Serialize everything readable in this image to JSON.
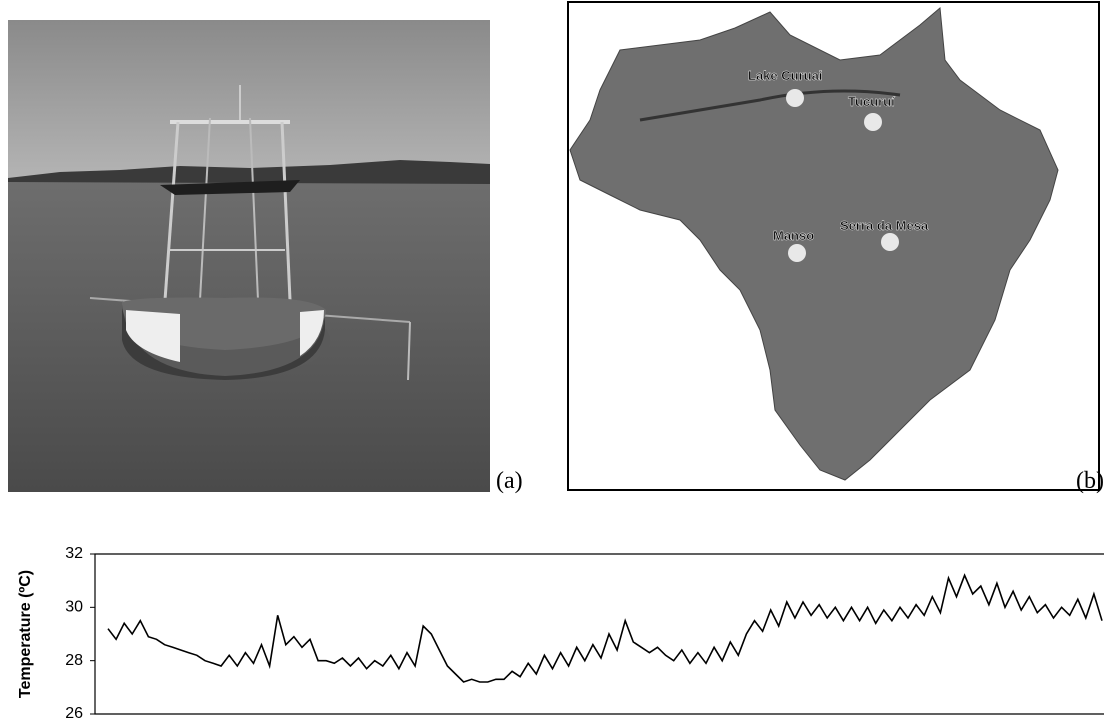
{
  "figure": {
    "panel_a": {
      "label": "(a)"
    },
    "panel_b": {
      "label": "(b)",
      "sites": [
        "Lake Curuai",
        "Tucuruí",
        "Manso",
        "Serra da Mesa"
      ]
    }
  },
  "chart_data": {
    "type": "line",
    "ylabel": "Temperature (ºC)",
    "color": "#000000",
    "ylim": [
      26,
      32
    ],
    "yticks": [
      26,
      28,
      30,
      32
    ],
    "values": [
      29.2,
      28.8,
      29.4,
      29.0,
      29.5,
      28.9,
      28.8,
      28.6,
      28.5,
      28.4,
      28.3,
      28.2,
      28.0,
      27.9,
      27.8,
      28.2,
      27.8,
      28.3,
      27.9,
      28.6,
      27.8,
      29.7,
      28.6,
      28.9,
      28.5,
      28.8,
      28.0,
      28.0,
      27.9,
      28.1,
      27.8,
      28.1,
      27.7,
      28.0,
      27.8,
      28.2,
      27.7,
      28.3,
      27.8,
      29.3,
      29.0,
      28.4,
      27.8,
      27.5,
      27.2,
      27.3,
      27.2,
      27.2,
      27.3,
      27.3,
      27.6,
      27.4,
      27.9,
      27.5,
      28.2,
      27.7,
      28.3,
      27.8,
      28.5,
      28.0,
      28.6,
      28.1,
      29.0,
      28.4,
      29.5,
      28.7,
      28.5,
      28.3,
      28.5,
      28.2,
      28.0,
      28.4,
      27.9,
      28.3,
      27.9,
      28.5,
      28.0,
      28.7,
      28.2,
      29.0,
      29.5,
      29.1,
      29.9,
      29.3,
      30.2,
      29.6,
      30.2,
      29.7,
      30.1,
      29.6,
      30.0,
      29.5,
      30.0,
      29.5,
      30.0,
      29.4,
      29.9,
      29.5,
      30.0,
      29.6,
      30.1,
      29.7,
      30.4,
      29.8,
      31.1,
      30.4,
      31.2,
      30.5,
      30.8,
      30.1,
      30.9,
      30.0,
      30.6,
      29.9,
      30.4,
      29.8,
      30.1,
      29.6,
      30.0,
      29.7,
      30.3,
      29.6,
      30.5,
      29.5
    ]
  }
}
